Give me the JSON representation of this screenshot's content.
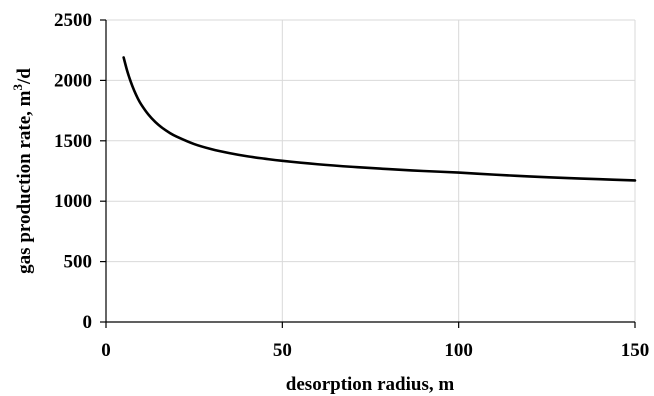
{
  "chart_data": {
    "type": "line",
    "xlabel": "desorption radius, m",
    "ylabel_text": "gas production rate,   m",
    "ylabel_sup": "3",
    "ylabel_unit": "/d",
    "xlim": [
      0,
      150
    ],
    "ylim": [
      0,
      2500
    ],
    "xticks": [
      "0",
      "50",
      "100",
      "150"
    ],
    "yticks": [
      "0",
      "500",
      "1000",
      "1500",
      "2000",
      "2500"
    ],
    "grid": true,
    "line_color": "#000000",
    "series": [
      {
        "x": [
          5,
          6,
          7,
          8,
          9,
          10,
          12,
          14,
          16,
          18,
          20,
          25,
          30,
          35,
          40,
          45,
          50,
          60,
          70,
          80,
          90,
          100,
          110,
          120,
          130,
          140,
          150
        ],
        "y": [
          2190,
          2080,
          1990,
          1915,
          1852,
          1800,
          1718,
          1655,
          1606,
          1567,
          1535,
          1473,
          1430,
          1398,
          1372,
          1352,
          1334,
          1306,
          1284,
          1266,
          1250,
          1237,
          1220,
          1205,
          1193,
          1182,
          1172
        ]
      }
    ]
  }
}
